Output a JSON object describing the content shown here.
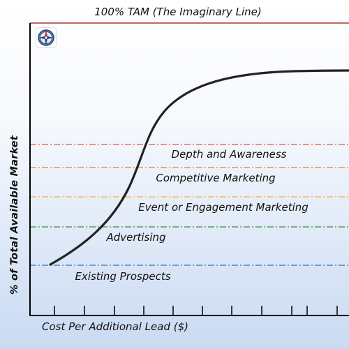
{
  "diagram": {
    "tam_label": "100% TAM (The Imaginary Line)",
    "y_axis_label": "% of Total Available Market",
    "x_axis_label": "Cost Per Additional Lead ($)",
    "icon": "compass-icon",
    "levels": [
      {
        "label": "Depth and Awareness",
        "color": "#e0584a"
      },
      {
        "label": "Competitive Marketing",
        "color": "#ee7a30"
      },
      {
        "label": "Event or Engagement Marketing",
        "color": "#f2b233"
      },
      {
        "label": "Advertising",
        "color": "#3d8a2e"
      },
      {
        "label": "Existing Prospects",
        "color": "#2f74b8"
      }
    ],
    "colors": {
      "tam_line": "#a53a3a",
      "curve": "#222222",
      "axis": "#000000",
      "background_top": "#ffffff",
      "background_bottom": "#c9daf2"
    }
  }
}
